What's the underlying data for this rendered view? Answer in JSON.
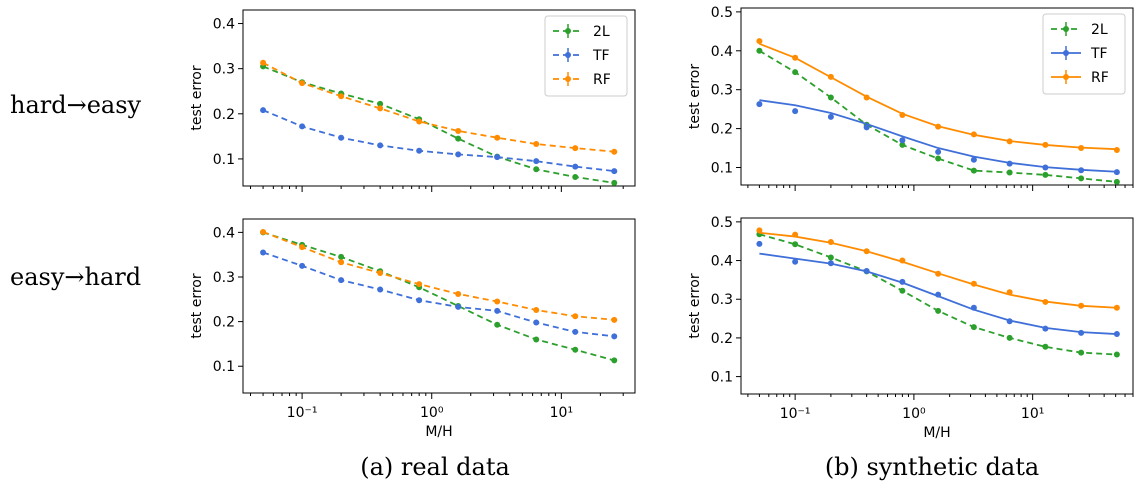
{
  "row_labels": [
    "hard→easy",
    "easy→hard"
  ],
  "captions": [
    "(a) real data",
    "(b) synthetic data"
  ],
  "colors": {
    "2L": "#2ca02c",
    "TF": "#3f6fd8",
    "RF": "#ff8c00"
  },
  "chart_data": [
    {
      "type": "line",
      "panel": "real hard→easy",
      "x": [
        0.05,
        0.1,
        0.2,
        0.4,
        0.8,
        1.6,
        3.2,
        6.4,
        12.8,
        25.6
      ],
      "xscale": "log",
      "xlim": [
        0.035,
        37
      ],
      "ylim": [
        0.04,
        0.43
      ],
      "yticks": [
        0.1,
        0.2,
        0.3,
        0.4
      ],
      "ylabel": "test error",
      "xlabel": "",
      "legend": [
        "2L",
        "TF",
        "RF"
      ],
      "legend_loc": "upper right",
      "series": [
        {
          "name": "2L",
          "style": "dashed",
          "values": [
            0.305,
            0.27,
            0.245,
            0.222,
            0.188,
            0.145,
            0.105,
            0.077,
            0.06,
            0.047
          ]
        },
        {
          "name": "TF",
          "style": "dashed",
          "values": [
            0.208,
            0.172,
            0.147,
            0.13,
            0.118,
            0.11,
            0.104,
            0.095,
            0.083,
            0.073
          ]
        },
        {
          "name": "RF",
          "style": "dashed",
          "values": [
            0.313,
            0.268,
            0.239,
            0.212,
            0.183,
            0.162,
            0.147,
            0.133,
            0.124,
            0.116
          ]
        }
      ]
    },
    {
      "type": "line",
      "panel": "real easy→hard",
      "x": [
        0.05,
        0.1,
        0.2,
        0.4,
        0.8,
        1.6,
        3.2,
        6.4,
        12.8,
        25.6
      ],
      "xscale": "log",
      "xlim": [
        0.035,
        37
      ],
      "ylim": [
        0.04,
        0.43
      ],
      "yticks": [
        0.1,
        0.2,
        0.3,
        0.4
      ],
      "xticks": [
        0.1,
        1,
        10
      ],
      "xtick_labels": [
        "10⁻¹",
        "10⁰",
        "10¹"
      ],
      "ylabel": "test error",
      "xlabel": "M/H",
      "series": [
        {
          "name": "2L",
          "style": "dashed",
          "values": [
            0.4,
            0.372,
            0.345,
            0.313,
            0.277,
            0.235,
            0.193,
            0.16,
            0.137,
            0.113
          ]
        },
        {
          "name": "TF",
          "style": "dashed",
          "values": [
            0.355,
            0.325,
            0.293,
            0.272,
            0.248,
            0.233,
            0.224,
            0.198,
            0.177,
            0.167
          ]
        },
        {
          "name": "RF",
          "style": "dashed",
          "values": [
            0.401,
            0.367,
            0.333,
            0.309,
            0.284,
            0.262,
            0.245,
            0.226,
            0.212,
            0.204
          ]
        }
      ]
    },
    {
      "type": "line",
      "panel": "synthetic hard→easy",
      "x": [
        0.05,
        0.1,
        0.2,
        0.4,
        0.8,
        1.6,
        3.2,
        6.4,
        12.8,
        25.6,
        51.2
      ],
      "xscale": "log",
      "xlim": [
        0.035,
        70
      ],
      "ylim": [
        0.055,
        0.51
      ],
      "yticks": [
        0.1,
        0.2,
        0.3,
        0.4,
        0.5
      ],
      "ylabel": "test error",
      "xlabel": "",
      "legend": [
        "2L",
        "TF",
        "RF"
      ],
      "legend_loc": "upper right",
      "series": [
        {
          "name": "2L",
          "style": "dashed",
          "values": [
            0.4,
            0.345,
            0.28,
            0.21,
            0.158,
            0.123,
            0.092,
            0.087,
            0.081,
            0.072,
            0.063
          ]
        },
        {
          "name": "TF",
          "style": "solid",
          "points": [
            0.263,
            0.245,
            0.23,
            0.203,
            0.17,
            0.14,
            0.12,
            0.11,
            0.1,
            0.093,
            0.088
          ],
          "values": [
            0.273,
            0.26,
            0.24,
            0.212,
            0.18,
            0.15,
            0.128,
            0.112,
            0.101,
            0.094,
            0.089
          ]
        },
        {
          "name": "RF",
          "style": "solid",
          "points": [
            0.425,
            0.382,
            0.333,
            0.28,
            0.235,
            0.205,
            0.185,
            0.167,
            0.158,
            0.15,
            0.145
          ],
          "values": [
            0.418,
            0.382,
            0.332,
            0.282,
            0.238,
            0.206,
            0.184,
            0.168,
            0.158,
            0.151,
            0.147
          ]
        }
      ]
    },
    {
      "type": "line",
      "panel": "synthetic easy→hard",
      "x": [
        0.05,
        0.1,
        0.2,
        0.4,
        0.8,
        1.6,
        3.2,
        6.4,
        12.8,
        25.6,
        51.2
      ],
      "xscale": "log",
      "xlim": [
        0.035,
        70
      ],
      "ylim": [
        0.055,
        0.51
      ],
      "yticks": [
        0.1,
        0.2,
        0.3,
        0.4,
        0.5
      ],
      "xticks": [
        0.1,
        1,
        10
      ],
      "xtick_labels": [
        "10⁻¹",
        "10⁰",
        "10¹"
      ],
      "ylabel": "test error",
      "xlabel": "M/H",
      "series": [
        {
          "name": "2L",
          "style": "dashed",
          "values": [
            0.468,
            0.442,
            0.408,
            0.372,
            0.322,
            0.27,
            0.228,
            0.2,
            0.177,
            0.162,
            0.157
          ]
        },
        {
          "name": "TF",
          "style": "solid",
          "points": [
            0.443,
            0.397,
            0.393,
            0.373,
            0.345,
            0.312,
            0.278,
            0.243,
            0.224,
            0.213,
            0.21
          ],
          "values": [
            0.418,
            0.405,
            0.392,
            0.372,
            0.343,
            0.308,
            0.273,
            0.245,
            0.226,
            0.215,
            0.21
          ]
        },
        {
          "name": "RF",
          "style": "solid",
          "points": [
            0.478,
            0.467,
            0.448,
            0.424,
            0.4,
            0.366,
            0.34,
            0.318,
            0.293,
            0.283,
            0.278
          ],
          "values": [
            0.472,
            0.462,
            0.446,
            0.424,
            0.397,
            0.367,
            0.338,
            0.312,
            0.294,
            0.283,
            0.278
          ]
        }
      ]
    }
  ]
}
